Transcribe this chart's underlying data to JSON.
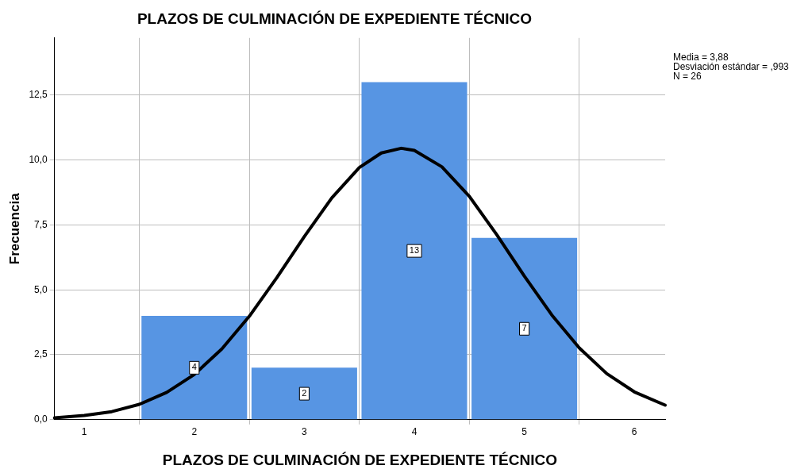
{
  "chart_data": {
    "type": "histogram",
    "title": "PLAZOS DE CULMINACIÓN DE EXPEDIENTE TÉCNICO",
    "xlabel": "PLAZOS DE CULMINACIÓN DE EXPEDIENTE TÉCNICO",
    "ylabel": "Frecuencia",
    "annotations": [
      "Media = 3,88",
      "Desviación estándar = ,993",
      "N = 26"
    ],
    "series": [
      {
        "type": "histogram",
        "bins": [
          1.5,
          2.5,
          3.5,
          4.5,
          5.5
        ],
        "values": [
          4,
          2,
          13,
          7
        ],
        "value_labels": [
          "4",
          "2",
          "13",
          "7"
        ],
        "color": "#5795e3"
      },
      {
        "type": "line",
        "color": "#000000",
        "x": [
          0.73,
          1.0,
          1.25,
          1.5,
          1.75,
          2.0,
          2.25,
          2.5,
          2.75,
          3.0,
          3.25,
          3.5,
          3.7,
          3.88,
          4.0,
          4.25,
          4.5,
          4.75,
          5.0,
          5.25,
          5.5,
          5.75,
          6.0,
          6.28
        ],
        "values": [
          0.07,
          0.16,
          0.31,
          0.59,
          1.05,
          1.74,
          2.72,
          3.98,
          5.47,
          7.05,
          8.54,
          9.71,
          10.27,
          10.45,
          10.37,
          9.74,
          8.6,
          7.12,
          5.53,
          4.03,
          2.76,
          1.77,
          1.07,
          0.56
        ]
      }
    ],
    "xlim": [
      0.73,
      6.28
    ],
    "xticks": [
      1,
      2,
      3,
      4,
      5,
      6
    ],
    "ylim": [
      0,
      14.7
    ],
    "yticks": [
      {
        "value": 0,
        "label": "0,0"
      },
      {
        "value": 2.5,
        "label": "2,5"
      },
      {
        "value": 5,
        "label": "5,0"
      },
      {
        "value": 7.5,
        "label": "7,5"
      },
      {
        "value": 10,
        "label": "10,0"
      },
      {
        "value": 12.5,
        "label": "12,5"
      }
    ],
    "grid": true,
    "legend": false,
    "marker": "none",
    "line_style": "solid"
  }
}
